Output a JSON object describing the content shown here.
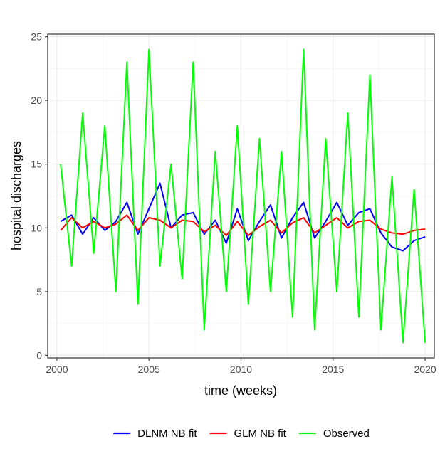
{
  "chart_data": {
    "type": "line",
    "xlabel": "time (weeks)",
    "ylabel": "hospital discharges",
    "xlim": [
      1999.5,
      2020.5
    ],
    "ylim": [
      -0.2,
      25.2
    ],
    "x_ticks": [
      2000,
      2005,
      2010,
      2015,
      2020
    ],
    "y_ticks": [
      0,
      5,
      10,
      15,
      20,
      25
    ],
    "grid": true,
    "legend_position": "bottom",
    "series": [
      {
        "name": "DLNM NB fit",
        "color": "#0000FF",
        "x": [
          2000.2,
          2000.8,
          2001.4,
          2002.0,
          2002.6,
          2003.2,
          2003.8,
          2004.4,
          2005.0,
          2005.6,
          2006.2,
          2006.8,
          2007.4,
          2008.0,
          2008.6,
          2009.2,
          2009.8,
          2010.4,
          2011.0,
          2011.6,
          2012.2,
          2012.8,
          2013.4,
          2014.0,
          2014.6,
          2015.2,
          2015.8,
          2016.4,
          2017.0,
          2017.6,
          2018.2,
          2018.8,
          2019.4,
          2020.0
        ],
        "y": [
          10.5,
          11.0,
          9.5,
          10.8,
          9.8,
          10.5,
          12.0,
          9.5,
          11.5,
          13.5,
          10.0,
          11.0,
          11.2,
          9.5,
          10.6,
          8.8,
          11.5,
          9.0,
          10.5,
          11.8,
          9.2,
          10.8,
          12.0,
          9.2,
          10.5,
          12.0,
          10.2,
          11.2,
          11.5,
          9.6,
          8.5,
          8.2,
          9.0,
          9.3
        ]
      },
      {
        "name": "GLM NB fit",
        "color": "#FF0000",
        "x": [
          2000.2,
          2000.8,
          2001.4,
          2002.0,
          2002.6,
          2003.2,
          2003.8,
          2004.4,
          2005.0,
          2005.6,
          2006.2,
          2006.8,
          2007.4,
          2008.0,
          2008.6,
          2009.2,
          2009.8,
          2010.4,
          2011.0,
          2011.6,
          2012.2,
          2012.8,
          2013.4,
          2014.0,
          2014.6,
          2015.2,
          2015.8,
          2016.4,
          2017.0,
          2017.6,
          2018.2,
          2018.8,
          2019.4,
          2020.0
        ],
        "y": [
          9.8,
          10.8,
          10.0,
          10.5,
          10.0,
          10.3,
          11.0,
          9.8,
          10.8,
          10.6,
          10.0,
          10.6,
          10.5,
          9.7,
          10.2,
          9.4,
          10.5,
          9.4,
          10.1,
          10.6,
          9.6,
          10.4,
          10.8,
          9.6,
          10.2,
          10.8,
          10.0,
          10.5,
          10.6,
          9.9,
          9.6,
          9.5,
          9.8,
          9.9
        ]
      },
      {
        "name": "Observed",
        "color": "#00FF00",
        "x": [
          2000.2,
          2000.8,
          2001.4,
          2002.0,
          2002.6,
          2003.2,
          2003.8,
          2004.4,
          2005.0,
          2005.6,
          2006.2,
          2006.8,
          2007.4,
          2008.0,
          2008.6,
          2009.2,
          2009.8,
          2010.4,
          2011.0,
          2011.6,
          2012.2,
          2012.8,
          2013.4,
          2014.0,
          2014.6,
          2015.2,
          2015.8,
          2016.4,
          2017.0,
          2017.6,
          2018.2,
          2018.8,
          2019.4,
          2020.0
        ],
        "y": [
          15.0,
          7.0,
          19.0,
          8.0,
          18.0,
          5.0,
          23.0,
          4.0,
          24.0,
          7.0,
          15.0,
          6.0,
          23.0,
          2.0,
          16.0,
          5.0,
          18.0,
          4.0,
          17.0,
          5.0,
          16.0,
          3.0,
          24.0,
          2.0,
          17.0,
          5.0,
          19.0,
          3.0,
          22.0,
          2.0,
          14.0,
          1.0,
          13.0,
          1.0
        ]
      }
    ]
  }
}
